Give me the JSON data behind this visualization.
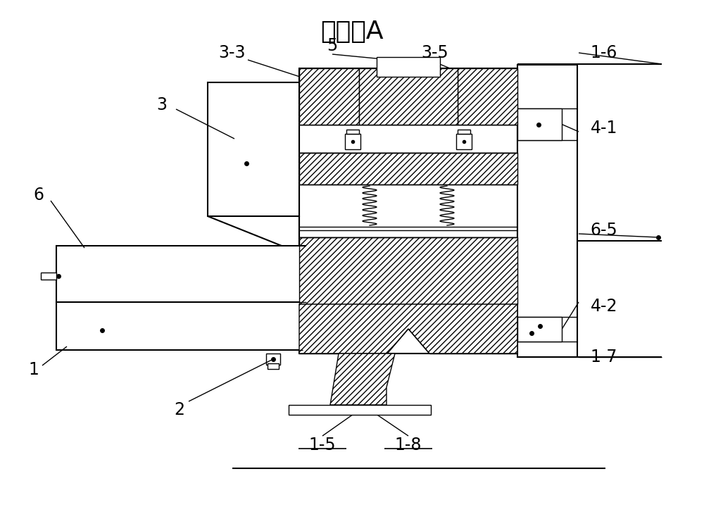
{
  "title": "局剖图A",
  "title_fontsize": 26,
  "background_color": "#ffffff",
  "line_color": "#000000",
  "label_fontsize": 17,
  "fig_width": 10.0,
  "fig_height": 7.37
}
